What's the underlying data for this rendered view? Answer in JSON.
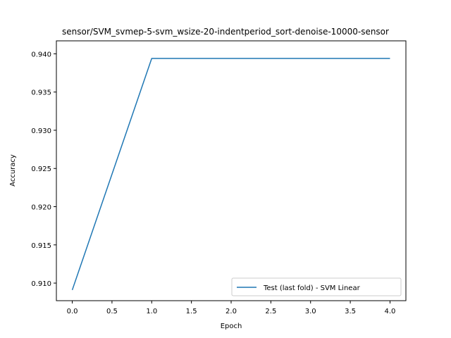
{
  "chart_data": {
    "type": "line",
    "title": "sensor/SVM_svmep-5-svm_wsize-20-indentperiod_sort-denoise-10000-sensor",
    "xlabel": "Epoch",
    "ylabel": "Accuracy",
    "xlim": [
      -0.2,
      4.2
    ],
    "ylim": [
      0.9077,
      0.9417
    ],
    "x_ticks": [
      0.0,
      0.5,
      1.0,
      1.5,
      2.0,
      2.5,
      3.0,
      3.5,
      4.0
    ],
    "x_tick_labels": [
      "0.0",
      "0.5",
      "1.0",
      "1.5",
      "2.0",
      "2.5",
      "3.0",
      "3.5",
      "4.0"
    ],
    "y_ticks": [
      0.91,
      0.915,
      0.92,
      0.925,
      0.93,
      0.935,
      0.94
    ],
    "y_tick_labels": [
      "0.910",
      "0.915",
      "0.920",
      "0.925",
      "0.930",
      "0.935",
      "0.940"
    ],
    "grid": false,
    "legend_position": "lower-right",
    "series": [
      {
        "name": "Test (last fold) - SVM Linear",
        "color": "#1f77b4",
        "x": [
          0,
          1,
          2,
          3,
          4
        ],
        "y": [
          0.9091,
          0.9394,
          0.9394,
          0.9394,
          0.9394
        ]
      }
    ]
  }
}
